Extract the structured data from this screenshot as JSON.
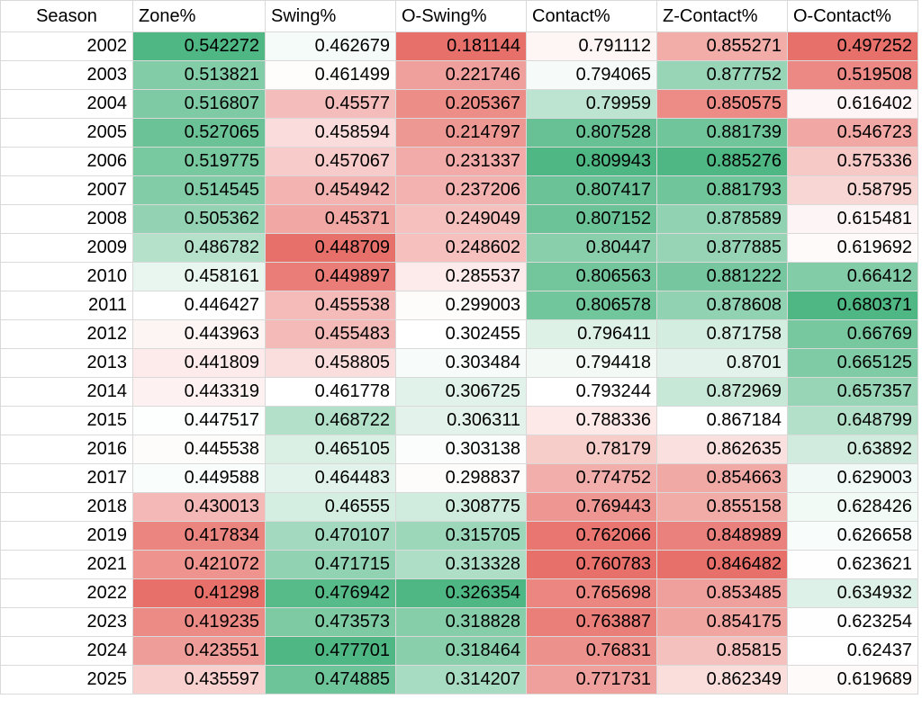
{
  "headers": [
    "Season",
    "Zone%",
    "Swing%",
    "O-Swing%",
    "Contact%",
    "Z-Contact%",
    "O-Contact%"
  ],
  "color_scale": {
    "low": "#e8706a",
    "mid": "#ffffff",
    "high": "#4fb783",
    "grid": "#d9d9d9"
  },
  "rows": [
    [
      "2002",
      "0.542272",
      "0.462679",
      "0.181144",
      "0.791112",
      "0.855271",
      "0.497252"
    ],
    [
      "2003",
      "0.513821",
      "0.461499",
      "0.221746",
      "0.794065",
      "0.877752",
      "0.519508"
    ],
    [
      "2004",
      "0.516807",
      "0.45577",
      "0.205367",
      "0.79959",
      "0.850575",
      "0.616402"
    ],
    [
      "2005",
      "0.527065",
      "0.458594",
      "0.214797",
      "0.807528",
      "0.881739",
      "0.546723"
    ],
    [
      "2006",
      "0.519775",
      "0.457067",
      "0.231337",
      "0.809943",
      "0.885276",
      "0.575336"
    ],
    [
      "2007",
      "0.514545",
      "0.454942",
      "0.237206",
      "0.807417",
      "0.881793",
      "0.58795"
    ],
    [
      "2008",
      "0.505362",
      "0.45371",
      "0.249049",
      "0.807152",
      "0.878589",
      "0.615481"
    ],
    [
      "2009",
      "0.486782",
      "0.448709",
      "0.248602",
      "0.80447",
      "0.877885",
      "0.619692"
    ],
    [
      "2010",
      "0.458161",
      "0.449897",
      "0.285537",
      "0.806563",
      "0.881222",
      "0.66412"
    ],
    [
      "2011",
      "0.446427",
      "0.455538",
      "0.299003",
      "0.806578",
      "0.878608",
      "0.680371"
    ],
    [
      "2012",
      "0.443963",
      "0.455483",
      "0.302455",
      "0.796411",
      "0.871758",
      "0.66769"
    ],
    [
      "2013",
      "0.441809",
      "0.458805",
      "0.303484",
      "0.794418",
      "0.8701",
      "0.665125"
    ],
    [
      "2014",
      "0.443319",
      "0.461778",
      "0.306725",
      "0.793244",
      "0.872969",
      "0.657357"
    ],
    [
      "2015",
      "0.447517",
      "0.468722",
      "0.306311",
      "0.788336",
      "0.867184",
      "0.648799"
    ],
    [
      "2016",
      "0.445538",
      "0.465105",
      "0.303138",
      "0.78179",
      "0.862635",
      "0.63892"
    ],
    [
      "2017",
      "0.449588",
      "0.464483",
      "0.298837",
      "0.774752",
      "0.854663",
      "0.629003"
    ],
    [
      "2018",
      "0.430013",
      "0.46555",
      "0.308775",
      "0.769443",
      "0.855158",
      "0.628426"
    ],
    [
      "2019",
      "0.417834",
      "0.470107",
      "0.315705",
      "0.762066",
      "0.848989",
      "0.626658"
    ],
    [
      "2021",
      "0.421072",
      "0.471715",
      "0.313328",
      "0.760783",
      "0.846482",
      "0.623621"
    ],
    [
      "2022",
      "0.41298",
      "0.476942",
      "0.326354",
      "0.765698",
      "0.853485",
      "0.634932"
    ],
    [
      "2023",
      "0.419235",
      "0.473573",
      "0.318828",
      "0.763887",
      "0.854175",
      "0.623254"
    ],
    [
      "2024",
      "0.423551",
      "0.477701",
      "0.318464",
      "0.76831",
      "0.85815",
      "0.62437"
    ],
    [
      "2025",
      "0.435597",
      "0.474885",
      "0.314207",
      "0.771731",
      "0.862349",
      "0.619689"
    ]
  ]
}
